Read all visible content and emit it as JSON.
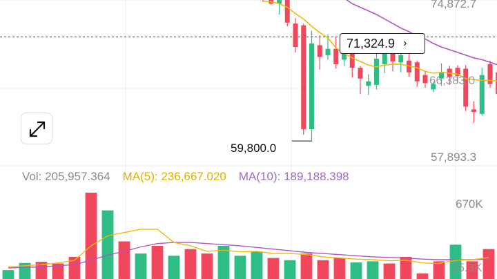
{
  "colors": {
    "up": "#2dbd85",
    "down": "#f0475c",
    "ma5": "#f0b90b",
    "ma10": "#b054c8",
    "grid": "#ececec"
  },
  "icons": {
    "expand": "expand-arrows-icon",
    "chevron": "chevron-right-icon"
  },
  "price_axis_labels": [
    "74,872.7",
    "66,383.0",
    "57,893.3"
  ],
  "volume_axis_labels": [
    "670K",
    "25.3K"
  ],
  "current_price_tag": "71,324.9",
  "low_marker_label": "59,800.0",
  "volume_legend": {
    "vol": "Vol: 205,957.364",
    "ma5": "MA(5): 236,667.020",
    "ma10": "MA(10): 189,188.398"
  },
  "chart_data": [
    {
      "type": "candlestick",
      "title": "",
      "ylim": [
        57893.3,
        76000
      ],
      "current_price": 71324.9,
      "low_marker": 59800.0,
      "candles": [
        {
          "o": 76200,
          "h": 76500,
          "l": 75200,
          "c": 75500
        },
        {
          "o": 76300,
          "h": 76600,
          "l": 74900,
          "c": 75000
        },
        {
          "o": 75000,
          "h": 76000,
          "l": 73800,
          "c": 75400
        },
        {
          "o": 75500,
          "h": 75700,
          "l": 72500,
          "c": 72900
        },
        {
          "o": 72800,
          "h": 73400,
          "l": 69600,
          "c": 70200
        },
        {
          "o": 72600,
          "h": 72800,
          "l": 60500,
          "c": 61100
        },
        {
          "o": 61100,
          "h": 72000,
          "l": 59800,
          "c": 70600
        },
        {
          "o": 70400,
          "h": 71500,
          "l": 67700,
          "c": 69100
        },
        {
          "o": 69300,
          "h": 71600,
          "l": 68800,
          "c": 70000
        },
        {
          "o": 70000,
          "h": 71300,
          "l": 67800,
          "c": 68300
        },
        {
          "o": 68800,
          "h": 70400,
          "l": 68100,
          "c": 69900
        },
        {
          "o": 70000,
          "h": 70700,
          "l": 66800,
          "c": 67900
        },
        {
          "o": 67900,
          "h": 68100,
          "l": 65000,
          "c": 66700
        },
        {
          "o": 65900,
          "h": 67200,
          "l": 64900,
          "c": 66400
        },
        {
          "o": 66000,
          "h": 69900,
          "l": 65500,
          "c": 68900
        },
        {
          "o": 68300,
          "h": 70400,
          "l": 67300,
          "c": 69600
        },
        {
          "o": 69500,
          "h": 69800,
          "l": 67500,
          "c": 68600
        },
        {
          "o": 68500,
          "h": 69700,
          "l": 67400,
          "c": 69300
        },
        {
          "o": 68700,
          "h": 69500,
          "l": 66900,
          "c": 67400
        },
        {
          "o": 68500,
          "h": 68700,
          "l": 65800,
          "c": 66400
        },
        {
          "o": 67100,
          "h": 67600,
          "l": 65700,
          "c": 66200
        },
        {
          "o": 65500,
          "h": 66400,
          "l": 65200,
          "c": 66100
        },
        {
          "o": 66700,
          "h": 68400,
          "l": 65900,
          "c": 67400
        },
        {
          "o": 67800,
          "h": 68100,
          "l": 66000,
          "c": 66900
        },
        {
          "o": 67900,
          "h": 68200,
          "l": 66200,
          "c": 67000
        },
        {
          "o": 67800,
          "h": 68200,
          "l": 63100,
          "c": 63600
        },
        {
          "o": 63300,
          "h": 64200,
          "l": 61800,
          "c": 63000
        },
        {
          "o": 62800,
          "h": 67900,
          "l": 62600,
          "c": 67100
        },
        {
          "o": 68300,
          "h": 68700,
          "l": 65700,
          "c": 66100
        },
        {
          "o": 67400,
          "h": 67900,
          "l": 64600,
          "c": 65000
        }
      ],
      "ma5": [
        75300,
        75200,
        75000,
        74600,
        73900,
        73300,
        72500,
        71800,
        71200,
        70100,
        69500,
        69000,
        68600,
        68200,
        68000,
        68200,
        68300,
        68300,
        68100,
        67900,
        67500,
        67300,
        67400,
        67300,
        67200,
        66700,
        66600,
        66500,
        66500,
        66400
      ],
      "ma10": [
        80800,
        80400,
        80100,
        79700,
        79300,
        78700,
        77900,
        77300,
        76800,
        76100,
        75600,
        75000,
        74600,
        74200,
        73800,
        73300,
        72800,
        72300,
        71900,
        71400,
        71100,
        70600,
        70200,
        69900,
        69600,
        69300,
        69000,
        68800,
        68500,
        68200
      ],
      "volume": {
        "ylim": [
          0,
          780000
        ],
        "values": [
          80000,
          145000,
          155000,
          140000,
          200000,
          780000,
          620000,
          340000,
          230000,
          300000,
          210000,
          270000,
          230000,
          300000,
          210000,
          250000,
          190000,
          170000,
          230000,
          170000,
          190000,
          150000,
          160000,
          140000,
          200000,
          50000,
          160000,
          310000,
          160000,
          270000
        ],
        "up": [
          true,
          true,
          false,
          false,
          false,
          false,
          true,
          false,
          true,
          false,
          true,
          false,
          false,
          true,
          true,
          true,
          false,
          true,
          false,
          false,
          false,
          true,
          true,
          false,
          false,
          false,
          false,
          true,
          false,
          false
        ],
        "ma5": [
          110000,
          120000,
          130000,
          145000,
          170000,
          300000,
          390000,
          420000,
          450000,
          450000,
          330000,
          300000,
          250000,
          260000,
          245000,
          250000,
          230000,
          230000,
          220000,
          200000,
          190000,
          180000,
          175000,
          165000,
          170000,
          145000,
          140000,
          170000,
          175000,
          195000
        ],
        "ma10": [
          100000,
          105000,
          110000,
          120000,
          130000,
          170000,
          215000,
          250000,
          290000,
          320000,
          330000,
          330000,
          320000,
          310000,
          300000,
          285000,
          270000,
          255000,
          240000,
          230000,
          220000,
          210000,
          200000,
          195000,
          190000,
          180000,
          175000,
          175000,
          175000,
          180000
        ]
      }
    }
  ]
}
